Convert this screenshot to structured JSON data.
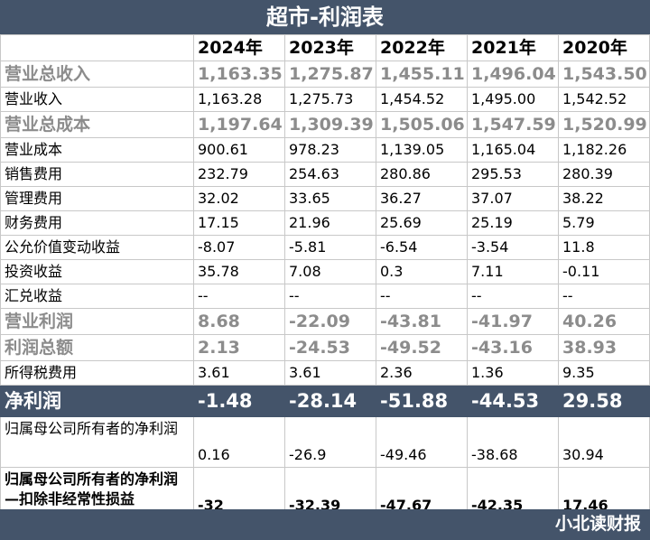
{
  "title": "超市-利润表",
  "headers": [
    "",
    "2024年",
    "2023年",
    "2022年",
    "2021年",
    "2020年"
  ],
  "rows": [
    {
      "label": "营业总收入",
      "values": [
        "1,163.35",
        "1,275.87",
        "1,455.11",
        "1,496.04",
        "1,543.50"
      ]
    },
    {
      "label": "营业收入",
      "values": [
        "1,163.28",
        "1,275.73",
        "1,454.52",
        "1,495.00",
        "1,542.52"
      ]
    },
    {
      "label": "营业总成本",
      "values": [
        "1,197.64",
        "1,309.39",
        "1,505.06",
        "1,547.59",
        "1,520.99"
      ]
    },
    {
      "label": "营业成本",
      "values": [
        "900.61",
        "978.23",
        "1,139.05",
        "1,165.04",
        "1,182.26"
      ]
    },
    {
      "label": "销售费用",
      "values": [
        "232.79",
        "254.63",
        "280.86",
        "295.53",
        "280.39"
      ]
    },
    {
      "label": "管理费用",
      "values": [
        "32.02",
        "33.65",
        "36.27",
        "37.07",
        "38.22"
      ]
    },
    {
      "label": "财务费用",
      "values": [
        "17.15",
        "21.96",
        "25.69",
        "25.19",
        "5.79"
      ]
    },
    {
      "label": "公允价值变动收益",
      "values": [
        "-8.07",
        "-5.81",
        "-6.54",
        "-3.54",
        "11.8"
      ]
    },
    {
      "label": "投资收益",
      "values": [
        "35.78",
        "7.08",
        "0.3",
        "7.11",
        "-0.11"
      ]
    },
    {
      "label": "汇兑收益",
      "values": [
        "--",
        "--",
        "--",
        "--",
        "--"
      ]
    },
    {
      "label": "营业利润",
      "values": [
        "8.68",
        "-22.09",
        "-43.81",
        "-41.97",
        "40.26"
      ]
    },
    {
      "label": "利润总额",
      "values": [
        "2.13",
        "-24.53",
        "-49.52",
        "-43.16",
        "38.93"
      ]
    },
    {
      "label": "所得税费用",
      "values": [
        "3.61",
        "3.61",
        "2.36",
        "1.36",
        "9.35"
      ]
    },
    {
      "label": "净利润",
      "values": [
        "-1.48",
        "-28.14",
        "-51.88",
        "-44.53",
        "29.58"
      ]
    },
    {
      "label": "归属母公司所有者的净利润",
      "values": [
        "0.16",
        "-26.9",
        "-49.46",
        "-38.68",
        "30.94"
      ]
    },
    {
      "label": "归属母公司所有者的净利润—扣除非经常性损益",
      "values": [
        "-32",
        "-32.39",
        "-47.67",
        "-42.35",
        "17.46"
      ]
    }
  ],
  "watermark": "小北读财报",
  "colors": {
    "header_bg": "#44546a",
    "gray_text": "#8c8c8c"
  }
}
